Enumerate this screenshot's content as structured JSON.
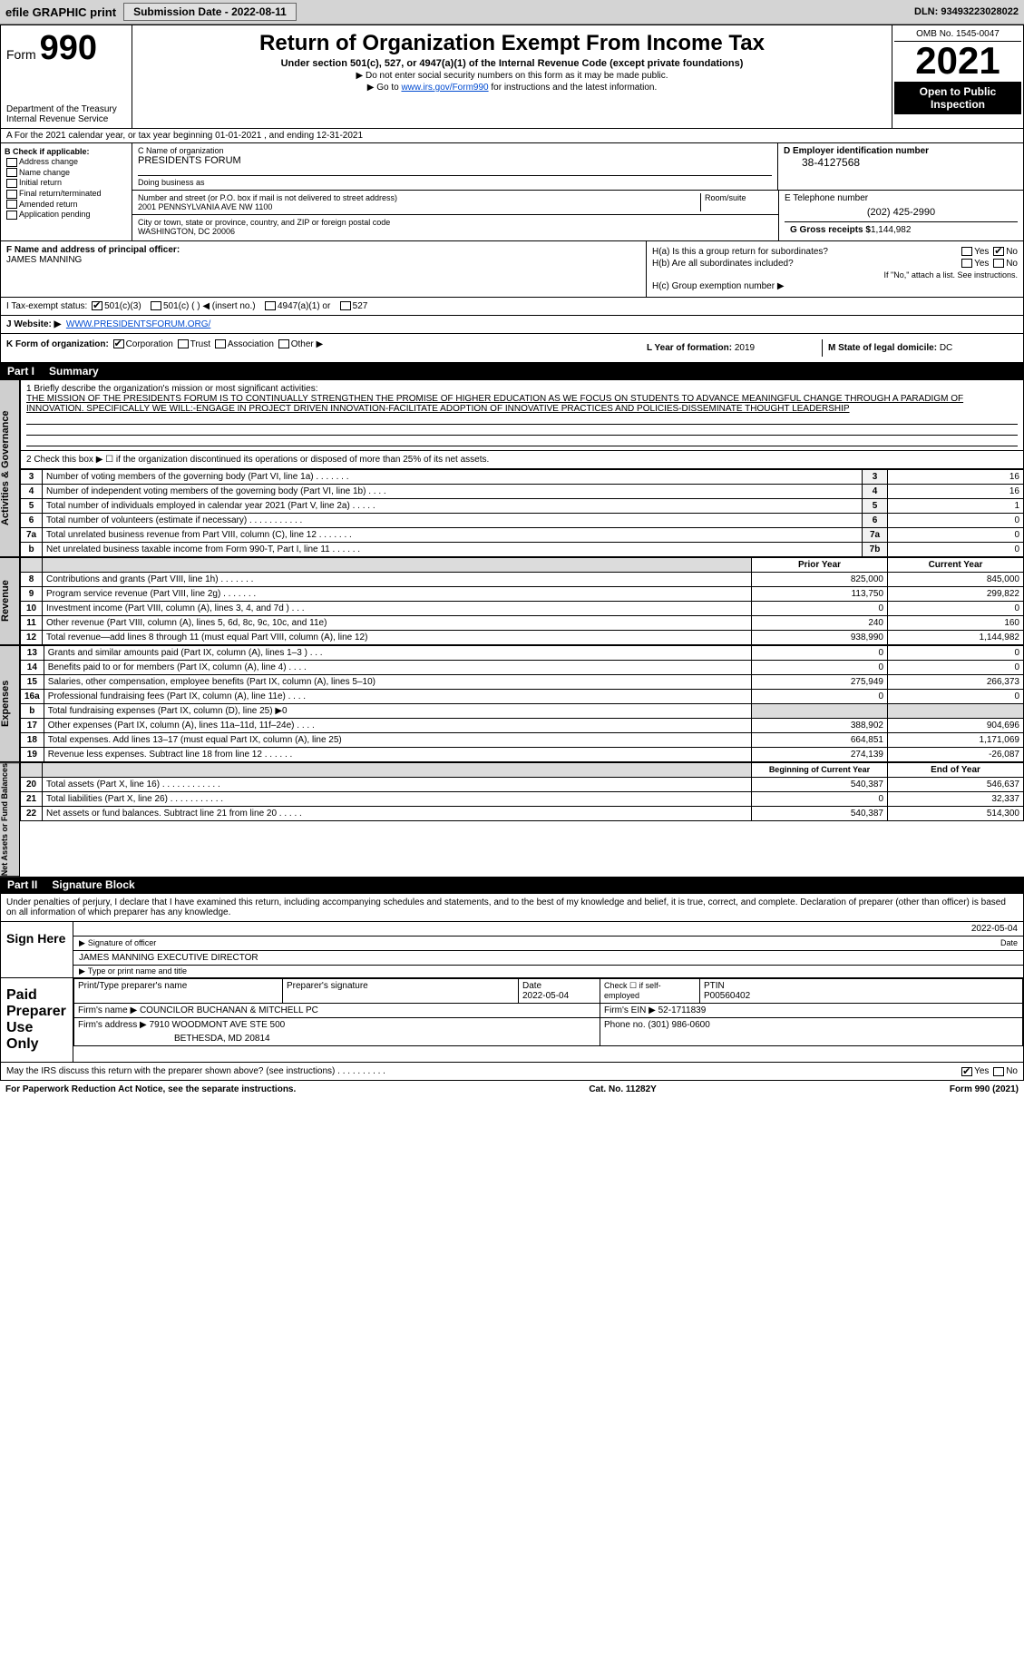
{
  "topbar": {
    "efile": "efile GRAPHIC print",
    "submission": "Submission Date - 2022-08-11",
    "dln": "DLN: 93493223028022"
  },
  "header": {
    "form_prefix": "Form",
    "form_number": "990",
    "title": "Return of Organization Exempt From Income Tax",
    "subtitle": "Under section 501(c), 527, or 4947(a)(1) of the Internal Revenue Code (except private foundations)",
    "note1": "▶ Do not enter social security numbers on this form as it may be made public.",
    "note2_pre": "▶ Go to ",
    "note2_link": "www.irs.gov/Form990",
    "note2_post": " for instructions and the latest information.",
    "dept": "Department of the Treasury",
    "irs": "Internal Revenue Service",
    "omb": "OMB No. 1545-0047",
    "year": "2021",
    "inspect": "Open to Public Inspection"
  },
  "row_a": "A For the 2021 calendar year, or tax year beginning 01-01-2021    , and ending 12-31-2021",
  "col_b": {
    "title": "B Check if applicable:",
    "opts": [
      "Address change",
      "Name change",
      "Initial return",
      "Final return/terminated",
      "Amended return",
      "Application pending"
    ]
  },
  "c": {
    "name_lbl": "C Name of organization",
    "name": "PRESIDENTS FORUM",
    "dba_lbl": "Doing business as",
    "street_lbl": "Number and street (or P.O. box if mail is not delivered to street address)",
    "room_lbl": "Room/suite",
    "street": "2001 PENNSYLVANIA AVE NW 1100",
    "city_lbl": "City or town, state or province, country, and ZIP or foreign postal code",
    "city": "WASHINGTON, DC  20006"
  },
  "d": {
    "lbl": "D Employer identification number",
    "val": "38-4127568"
  },
  "e": {
    "lbl": "E Telephone number",
    "val": "(202) 425-2990"
  },
  "g": {
    "lbl": "G Gross receipts $",
    "val": "1,144,982"
  },
  "f": {
    "lbl": "F Name and address of principal officer:",
    "val": "JAMES MANNING"
  },
  "h": {
    "a": "H(a)  Is this a group return for subordinates?",
    "b": "H(b)  Are all subordinates included?",
    "b_note": "If \"No,\" attach a list. See instructions.",
    "c": "H(c)  Group exemption number ▶",
    "yes": "Yes",
    "no": "No"
  },
  "i": {
    "lbl": "I    Tax-exempt status:",
    "o1": "501(c)(3)",
    "o2": "501(c) (  ) ◀ (insert no.)",
    "o3": "4947(a)(1) or",
    "o4": "527"
  },
  "j": {
    "lbl": "J    Website: ▶",
    "val": "WWW.PRESIDENTSFORUM.ORG/"
  },
  "k": {
    "lbl": "K Form of organization:",
    "opts": [
      "Corporation",
      "Trust",
      "Association",
      "Other ▶"
    ]
  },
  "l": {
    "lbl": "L Year of formation:",
    "val": "2019"
  },
  "m": {
    "lbl": "M State of legal domicile:",
    "val": "DC"
  },
  "part1": {
    "num": "Part I",
    "title": "Summary"
  },
  "mission": {
    "lbl": "1  Briefly describe the organization's mission or most significant activities:",
    "text": "THE MISSION OF THE PRESIDENTS FORUM IS TO CONTINUALLY STRENGTHEN THE PROMISE OF HIGHER EDUCATION AS WE FOCUS ON STUDENTS TO ADVANCE MEANINGFUL CHANGE THROUGH A PARADIGM OF INNOVATION. SPECIFICALLY WE WILL:-ENGAGE IN PROJECT DRIVEN INNOVATION-FACILITATE ADOPTION OF INNOVATIVE PRACTICES AND POLICIES-DISSEMINATE THOUGHT LEADERSHIP"
  },
  "line2": "2   Check this box ▶ ☐  if the organization discontinued its operations or disposed of more than 25% of its net assets.",
  "gov_side": "Activities & Governance",
  "rev_side": "Revenue",
  "exp_side": "Expenses",
  "net_side": "Net Assets or Fund Balances",
  "gov_rows": [
    {
      "n": "3",
      "t": "Number of voting members of the governing body (Part VI, line 1a)   .    .    .    .    .    .    .",
      "b": "3",
      "v": "16"
    },
    {
      "n": "4",
      "t": "Number of independent voting members of the governing body (Part VI, line 1b)   .    .    .    .",
      "b": "4",
      "v": "16"
    },
    {
      "n": "5",
      "t": "Total number of individuals employed in calendar year 2021 (Part V, line 2a)   .    .    .    .    .",
      "b": "5",
      "v": "1"
    },
    {
      "n": "6",
      "t": "Total number of volunteers (estimate if necessary)    .    .    .    .    .    .    .    .    .    .    .",
      "b": "6",
      "v": "0"
    },
    {
      "n": "7a",
      "t": "Total unrelated business revenue from Part VIII, column (C), line 12  .    .    .    .    .    .    .",
      "b": "7a",
      "v": "0"
    },
    {
      "n": "b",
      "t": "Net unrelated business taxable income from Form 990-T, Part I, line 11   .    .    .    .    .    .",
      "b": "7b",
      "v": "0"
    }
  ],
  "col_hdrs": {
    "prior": "Prior Year",
    "current": "Current Year"
  },
  "rev_rows": [
    {
      "n": "8",
      "t": "Contributions and grants (Part VIII, line 1h)   .    .    .    .    .    .    .",
      "p": "825,000",
      "c": "845,000"
    },
    {
      "n": "9",
      "t": "Program service revenue (Part VIII, line 2g)   .    .    .    .    .    .    .",
      "p": "113,750",
      "c": "299,822"
    },
    {
      "n": "10",
      "t": "Investment income (Part VIII, column (A), lines 3, 4, and 7d )   .    .    .",
      "p": "0",
      "c": "0"
    },
    {
      "n": "11",
      "t": "Other revenue (Part VIII, column (A), lines 5, 6d, 8c, 9c, 10c, and 11e)",
      "p": "240",
      "c": "160"
    },
    {
      "n": "12",
      "t": "Total revenue—add lines 8 through 11 (must equal Part VIII, column (A), line 12)",
      "p": "938,990",
      "c": "1,144,982"
    }
  ],
  "exp_rows": [
    {
      "n": "13",
      "t": "Grants and similar amounts paid (Part IX, column (A), lines 1–3 )   .    .    .",
      "p": "0",
      "c": "0"
    },
    {
      "n": "14",
      "t": "Benefits paid to or for members (Part IX, column (A), line 4)   .    .    .    .",
      "p": "0",
      "c": "0"
    },
    {
      "n": "15",
      "t": "Salaries, other compensation, employee benefits (Part IX, column (A), lines 5–10)",
      "p": "275,949",
      "c": "266,373"
    },
    {
      "n": "16a",
      "t": "Professional fundraising fees (Part IX, column (A), line 11e)   .    .    .    .",
      "p": "0",
      "c": "0"
    },
    {
      "n": "b",
      "t": "Total fundraising expenses (Part IX, column (D), line 25) ▶0",
      "p": "",
      "c": "",
      "shade": true
    },
    {
      "n": "17",
      "t": "Other expenses (Part IX, column (A), lines 11a–11d, 11f–24e)   .    .    .    .",
      "p": "388,902",
      "c": "904,696"
    },
    {
      "n": "18",
      "t": "Total expenses. Add lines 13–17 (must equal Part IX, column (A), line 25)",
      "p": "664,851",
      "c": "1,171,069"
    },
    {
      "n": "19",
      "t": "Revenue less expenses. Subtract line 18 from line 12  .    .    .    .    .    .",
      "p": "274,139",
      "c": "-26,087"
    }
  ],
  "net_hdrs": {
    "begin": "Beginning of Current Year",
    "end": "End of Year"
  },
  "net_rows": [
    {
      "n": "20",
      "t": "Total assets (Part X, line 16)  .    .    .    .    .    .    .    .    .    .    .    .",
      "p": "540,387",
      "c": "546,637"
    },
    {
      "n": "21",
      "t": "Total liabilities (Part X, line 26)  .    .    .    .    .    .    .    .    .    .    .",
      "p": "0",
      "c": "32,337"
    },
    {
      "n": "22",
      "t": "Net assets or fund balances. Subtract line 21 from line 20   .    .    .    .    .",
      "p": "540,387",
      "c": "514,300"
    }
  ],
  "part2": {
    "num": "Part II",
    "title": "Signature Block"
  },
  "perjury": "Under penalties of perjury, I declare that I have examined this return, including accompanying schedules and statements, and to the best of my knowledge and belief, it is true, correct, and complete. Declaration of preparer (other than officer) is based on all information of which preparer has any knowledge.",
  "sign": {
    "here": "Sign Here",
    "date": "2022-05-04",
    "sig_lbl": "Signature of officer",
    "date_lbl": "Date",
    "name": "JAMES MANNING  EXECUTIVE DIRECTOR",
    "name_lbl": "Type or print name and title"
  },
  "paid": {
    "title": "Paid Preparer Use Only",
    "h1": "Print/Type preparer's name",
    "h2": "Preparer's signature",
    "h3": "Date",
    "date": "2022-05-04",
    "h4": "Check ☐ if self-employed",
    "h5": "PTIN",
    "ptin": "P00560402",
    "firm_lbl": "Firm's name    ▶",
    "firm": "COUNCILOR BUCHANAN & MITCHELL PC",
    "ein_lbl": "Firm's EIN ▶",
    "ein": "52-1711839",
    "addr_lbl": "Firm's address ▶",
    "addr1": "7910 WOODMONT AVE STE 500",
    "addr2": "BETHESDA, MD  20814",
    "phone_lbl": "Phone no.",
    "phone": "(301) 986-0600"
  },
  "discuss": "May the IRS discuss this return with the preparer shown above? (see instructions)   .    .    .    .    .    .    .    .    .    .",
  "footer": {
    "left": "For Paperwork Reduction Act Notice, see the separate instructions.",
    "mid": "Cat. No. 11282Y",
    "right": "Form 990 (2021)"
  }
}
